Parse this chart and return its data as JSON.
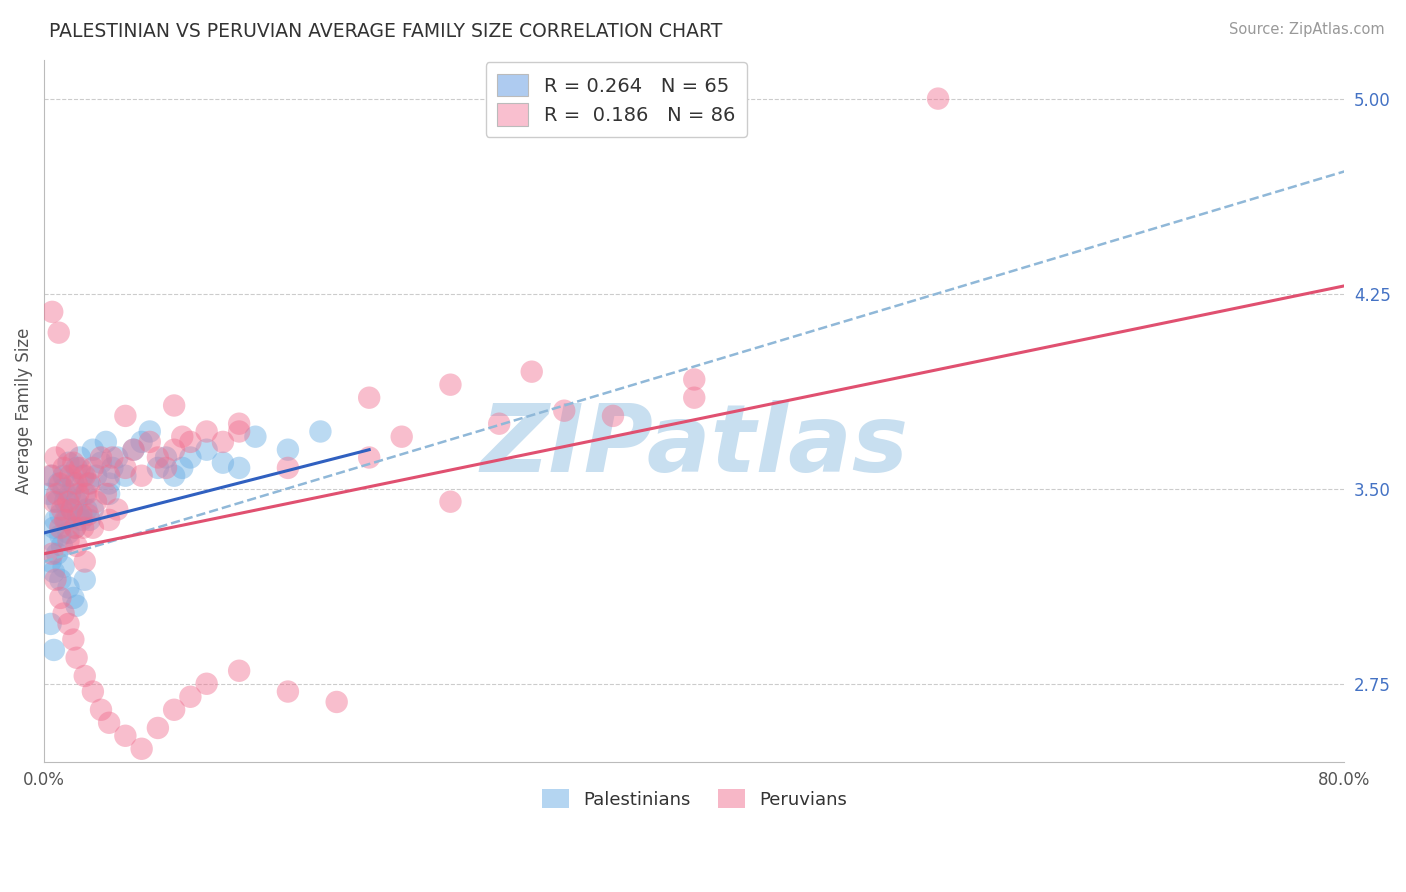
{
  "title": "PALESTINIAN VS PERUVIAN AVERAGE FAMILY SIZE CORRELATION CHART",
  "source": "Source: ZipAtlas.com",
  "ylabel": "Average Family Size",
  "xlim": [
    0.0,
    80.0
  ],
  "ylim": [
    2.45,
    5.15
  ],
  "yticks": [
    2.75,
    3.5,
    4.25,
    5.0
  ],
  "ytick_labels": [
    "2.75",
    "3.50",
    "4.25",
    "5.00"
  ],
  "xtick_labels": [
    "0.0%",
    "80.0%"
  ],
  "legend_line1": "R = 0.264   N = 65",
  "legend_line2": "R =  0.186   N = 86",
  "legend_color1": "#aecbf0",
  "legend_color2": "#f9bfcf",
  "palestinians_color": "#6aade4",
  "peruvians_color": "#f07090",
  "trend_blue_color": "#3060c0",
  "trend_pink_color": "#e05070",
  "dashed_line_color": "#90b8d8",
  "watermark_text": "ZIPatlas",
  "watermark_color": "#c8dff0",
  "grid_color": "#cccccc",
  "background_color": "#ffffff",
  "blue_trend_x": [
    0.0,
    20.0
  ],
  "blue_trend_y": [
    3.33,
    3.65
  ],
  "pink_trend_x": [
    0.0,
    80.0
  ],
  "pink_trend_y": [
    3.25,
    4.28
  ],
  "dashed_trend_x": [
    0.0,
    80.0
  ],
  "dashed_trend_y": [
    3.22,
    4.72
  ],
  "palestinians": [
    [
      0.3,
      3.48
    ],
    [
      0.5,
      3.55
    ],
    [
      0.6,
      3.35
    ],
    [
      0.7,
      3.38
    ],
    [
      0.8,
      3.45
    ],
    [
      0.9,
      3.52
    ],
    [
      1.0,
      3.4
    ],
    [
      1.0,
      3.32
    ],
    [
      1.1,
      3.28
    ],
    [
      1.2,
      3.55
    ],
    [
      1.2,
      3.5
    ],
    [
      1.3,
      3.45
    ],
    [
      1.4,
      3.38
    ],
    [
      1.5,
      3.6
    ],
    [
      1.5,
      3.33
    ],
    [
      1.6,
      3.48
    ],
    [
      1.7,
      3.42
    ],
    [
      1.8,
      3.52
    ],
    [
      1.9,
      3.35
    ],
    [
      2.0,
      3.58
    ],
    [
      2.0,
      3.45
    ],
    [
      2.1,
      3.4
    ],
    [
      2.2,
      3.62
    ],
    [
      2.3,
      3.38
    ],
    [
      2.4,
      3.55
    ],
    [
      2.5,
      3.48
    ],
    [
      2.6,
      3.42
    ],
    [
      2.7,
      3.52
    ],
    [
      2.8,
      3.38
    ],
    [
      3.0,
      3.65
    ],
    [
      3.0,
      3.42
    ],
    [
      3.2,
      3.55
    ],
    [
      3.5,
      3.6
    ],
    [
      3.8,
      3.68
    ],
    [
      4.0,
      3.52
    ],
    [
      4.0,
      3.48
    ],
    [
      4.2,
      3.58
    ],
    [
      4.5,
      3.62
    ],
    [
      5.0,
      3.55
    ],
    [
      5.5,
      3.65
    ],
    [
      6.0,
      3.68
    ],
    [
      6.5,
      3.72
    ],
    [
      7.0,
      3.58
    ],
    [
      7.5,
      3.62
    ],
    [
      8.0,
      3.55
    ],
    [
      8.5,
      3.58
    ],
    [
      9.0,
      3.62
    ],
    [
      10.0,
      3.65
    ],
    [
      11.0,
      3.6
    ],
    [
      12.0,
      3.58
    ],
    [
      0.4,
      3.22
    ],
    [
      0.5,
      3.3
    ],
    [
      0.6,
      3.18
    ],
    [
      0.8,
      3.25
    ],
    [
      1.0,
      3.15
    ],
    [
      1.2,
      3.2
    ],
    [
      1.5,
      3.12
    ],
    [
      1.8,
      3.08
    ],
    [
      2.0,
      3.05
    ],
    [
      2.5,
      3.15
    ],
    [
      0.4,
      2.98
    ],
    [
      0.6,
      2.88
    ],
    [
      13.0,
      3.7
    ],
    [
      15.0,
      3.65
    ],
    [
      17.0,
      3.72
    ]
  ],
  "peruvians": [
    [
      0.4,
      3.55
    ],
    [
      0.5,
      4.18
    ],
    [
      0.6,
      3.45
    ],
    [
      0.7,
      3.62
    ],
    [
      0.8,
      3.48
    ],
    [
      0.9,
      4.1
    ],
    [
      1.0,
      3.52
    ],
    [
      1.0,
      3.35
    ],
    [
      1.1,
      3.42
    ],
    [
      1.2,
      3.58
    ],
    [
      1.3,
      3.38
    ],
    [
      1.4,
      3.65
    ],
    [
      1.5,
      3.45
    ],
    [
      1.5,
      3.3
    ],
    [
      1.6,
      3.55
    ],
    [
      1.7,
      3.42
    ],
    [
      1.8,
      3.6
    ],
    [
      1.9,
      3.35
    ],
    [
      2.0,
      3.52
    ],
    [
      2.0,
      3.28
    ],
    [
      2.1,
      3.48
    ],
    [
      2.2,
      3.58
    ],
    [
      2.3,
      3.4
    ],
    [
      2.4,
      3.35
    ],
    [
      2.5,
      3.55
    ],
    [
      2.5,
      3.22
    ],
    [
      2.6,
      3.48
    ],
    [
      2.7,
      3.4
    ],
    [
      2.8,
      3.52
    ],
    [
      3.0,
      3.58
    ],
    [
      3.0,
      3.35
    ],
    [
      3.2,
      3.45
    ],
    [
      3.5,
      3.62
    ],
    [
      3.8,
      3.48
    ],
    [
      4.0,
      3.55
    ],
    [
      4.0,
      3.38
    ],
    [
      4.2,
      3.62
    ],
    [
      4.5,
      3.42
    ],
    [
      5.0,
      3.58
    ],
    [
      5.5,
      3.65
    ],
    [
      6.0,
      3.55
    ],
    [
      6.5,
      3.68
    ],
    [
      7.0,
      3.62
    ],
    [
      7.5,
      3.58
    ],
    [
      8.0,
      3.65
    ],
    [
      8.5,
      3.7
    ],
    [
      9.0,
      3.68
    ],
    [
      10.0,
      3.72
    ],
    [
      11.0,
      3.68
    ],
    [
      12.0,
      3.75
    ],
    [
      0.5,
      3.25
    ],
    [
      0.7,
      3.15
    ],
    [
      1.0,
      3.08
    ],
    [
      1.2,
      3.02
    ],
    [
      1.5,
      2.98
    ],
    [
      1.8,
      2.92
    ],
    [
      2.0,
      2.85
    ],
    [
      2.5,
      2.78
    ],
    [
      3.0,
      2.72
    ],
    [
      3.5,
      2.65
    ],
    [
      4.0,
      2.6
    ],
    [
      5.0,
      2.55
    ],
    [
      6.0,
      2.5
    ],
    [
      7.0,
      2.58
    ],
    [
      8.0,
      2.65
    ],
    [
      9.0,
      2.7
    ],
    [
      10.0,
      2.75
    ],
    [
      12.0,
      2.8
    ],
    [
      15.0,
      2.72
    ],
    [
      18.0,
      2.68
    ],
    [
      5.0,
      3.78
    ],
    [
      8.0,
      3.82
    ],
    [
      12.0,
      3.72
    ],
    [
      20.0,
      3.85
    ],
    [
      25.0,
      3.9
    ],
    [
      30.0,
      3.95
    ],
    [
      35.0,
      3.78
    ],
    [
      40.0,
      3.85
    ],
    [
      15.0,
      3.58
    ],
    [
      20.0,
      3.62
    ],
    [
      25.0,
      3.45
    ],
    [
      55.0,
      5.0
    ],
    [
      22.0,
      3.7
    ],
    [
      28.0,
      3.75
    ],
    [
      32.0,
      3.8
    ],
    [
      40.0,
      3.92
    ]
  ]
}
